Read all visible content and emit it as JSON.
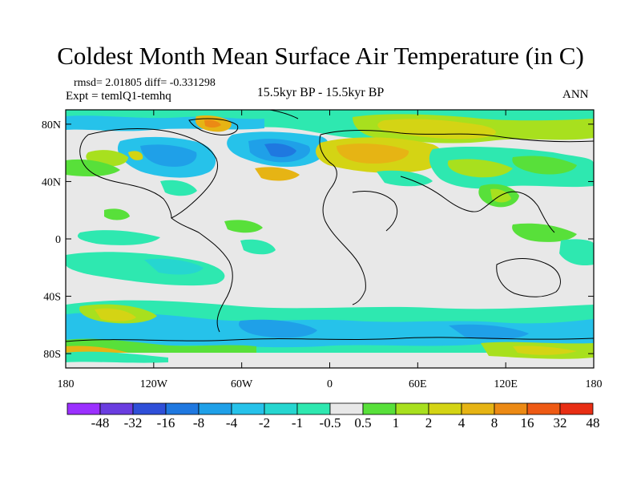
{
  "title": "Coldest Month Mean Surface Air Temperature (in C)",
  "stats": "rmsd= 2.01805 diff= -0.331298",
  "experiment": "Expt = temlQ1-temhq",
  "period": "15.5kyr BP - 15.5kyr BP",
  "season": "ANN",
  "map": {
    "lon_ticks": [
      "180",
      "120W",
      "60W",
      "0",
      "60E",
      "120E",
      "180"
    ],
    "lat_ticks": [
      "80N",
      "40N",
      "0",
      "40S",
      "80S"
    ],
    "lat_tick_values": [
      80,
      40,
      0,
      -40,
      -80
    ],
    "lon_tick_values": [
      -180,
      -120,
      -60,
      0,
      60,
      120,
      180
    ],
    "lat_range": [
      -90,
      90
    ],
    "lon_range": [
      -180,
      180
    ]
  },
  "colorbar": {
    "labels": [
      "-48",
      "-32",
      "-16",
      "-8",
      "-4",
      "-2",
      "-1",
      "-0.5",
      "0.5",
      "1",
      "2",
      "4",
      "8",
      "16",
      "32",
      "48"
    ],
    "colors": [
      "#9b30ff",
      "#6a3de0",
      "#2f4fd8",
      "#1f78e0",
      "#1fa0e8",
      "#26c2ea",
      "#26d6d0",
      "#2ee8b0",
      "#e8e8e8",
      "#58e03a",
      "#a8e01e",
      "#d4d414",
      "#e6b414",
      "#ec8a14",
      "#ee5a14",
      "#e82e14"
    ]
  }
}
